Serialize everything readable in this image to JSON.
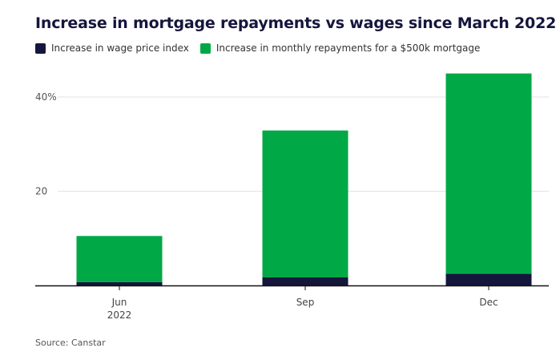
{
  "header": {
    "title": "Increase in mortgage repayments vs wages since March 2022"
  },
  "footer": {
    "source": "Source: Canstar"
  },
  "colors": {
    "wage": "#15163c",
    "repayments": "#00a846",
    "gridline": "#e3e3e3",
    "axis": "#111111"
  },
  "chart_data": {
    "type": "bar",
    "stacked": true,
    "title": "Increase in mortgage repayments vs wages since March 2022",
    "categories": [
      {
        "line1": "Jun",
        "line2": "2022"
      },
      {
        "line1": "Sep",
        "line2": ""
      },
      {
        "line1": "Dec",
        "line2": ""
      }
    ],
    "series": [
      {
        "name": "Increase in wage price index",
        "color": "#15163c",
        "values": [
          0.7,
          1.7,
          2.5
        ]
      },
      {
        "name": "Increase in monthly repayments for a $500k mortgage",
        "color": "#00a846",
        "values": [
          9.8,
          31.2,
          42.5
        ]
      }
    ],
    "yticks": [
      {
        "value": 20,
        "label": "20"
      },
      {
        "value": 40,
        "label": "40%"
      }
    ],
    "ylim": [
      0,
      46
    ],
    "grid": true,
    "legend_position": "top-left"
  }
}
